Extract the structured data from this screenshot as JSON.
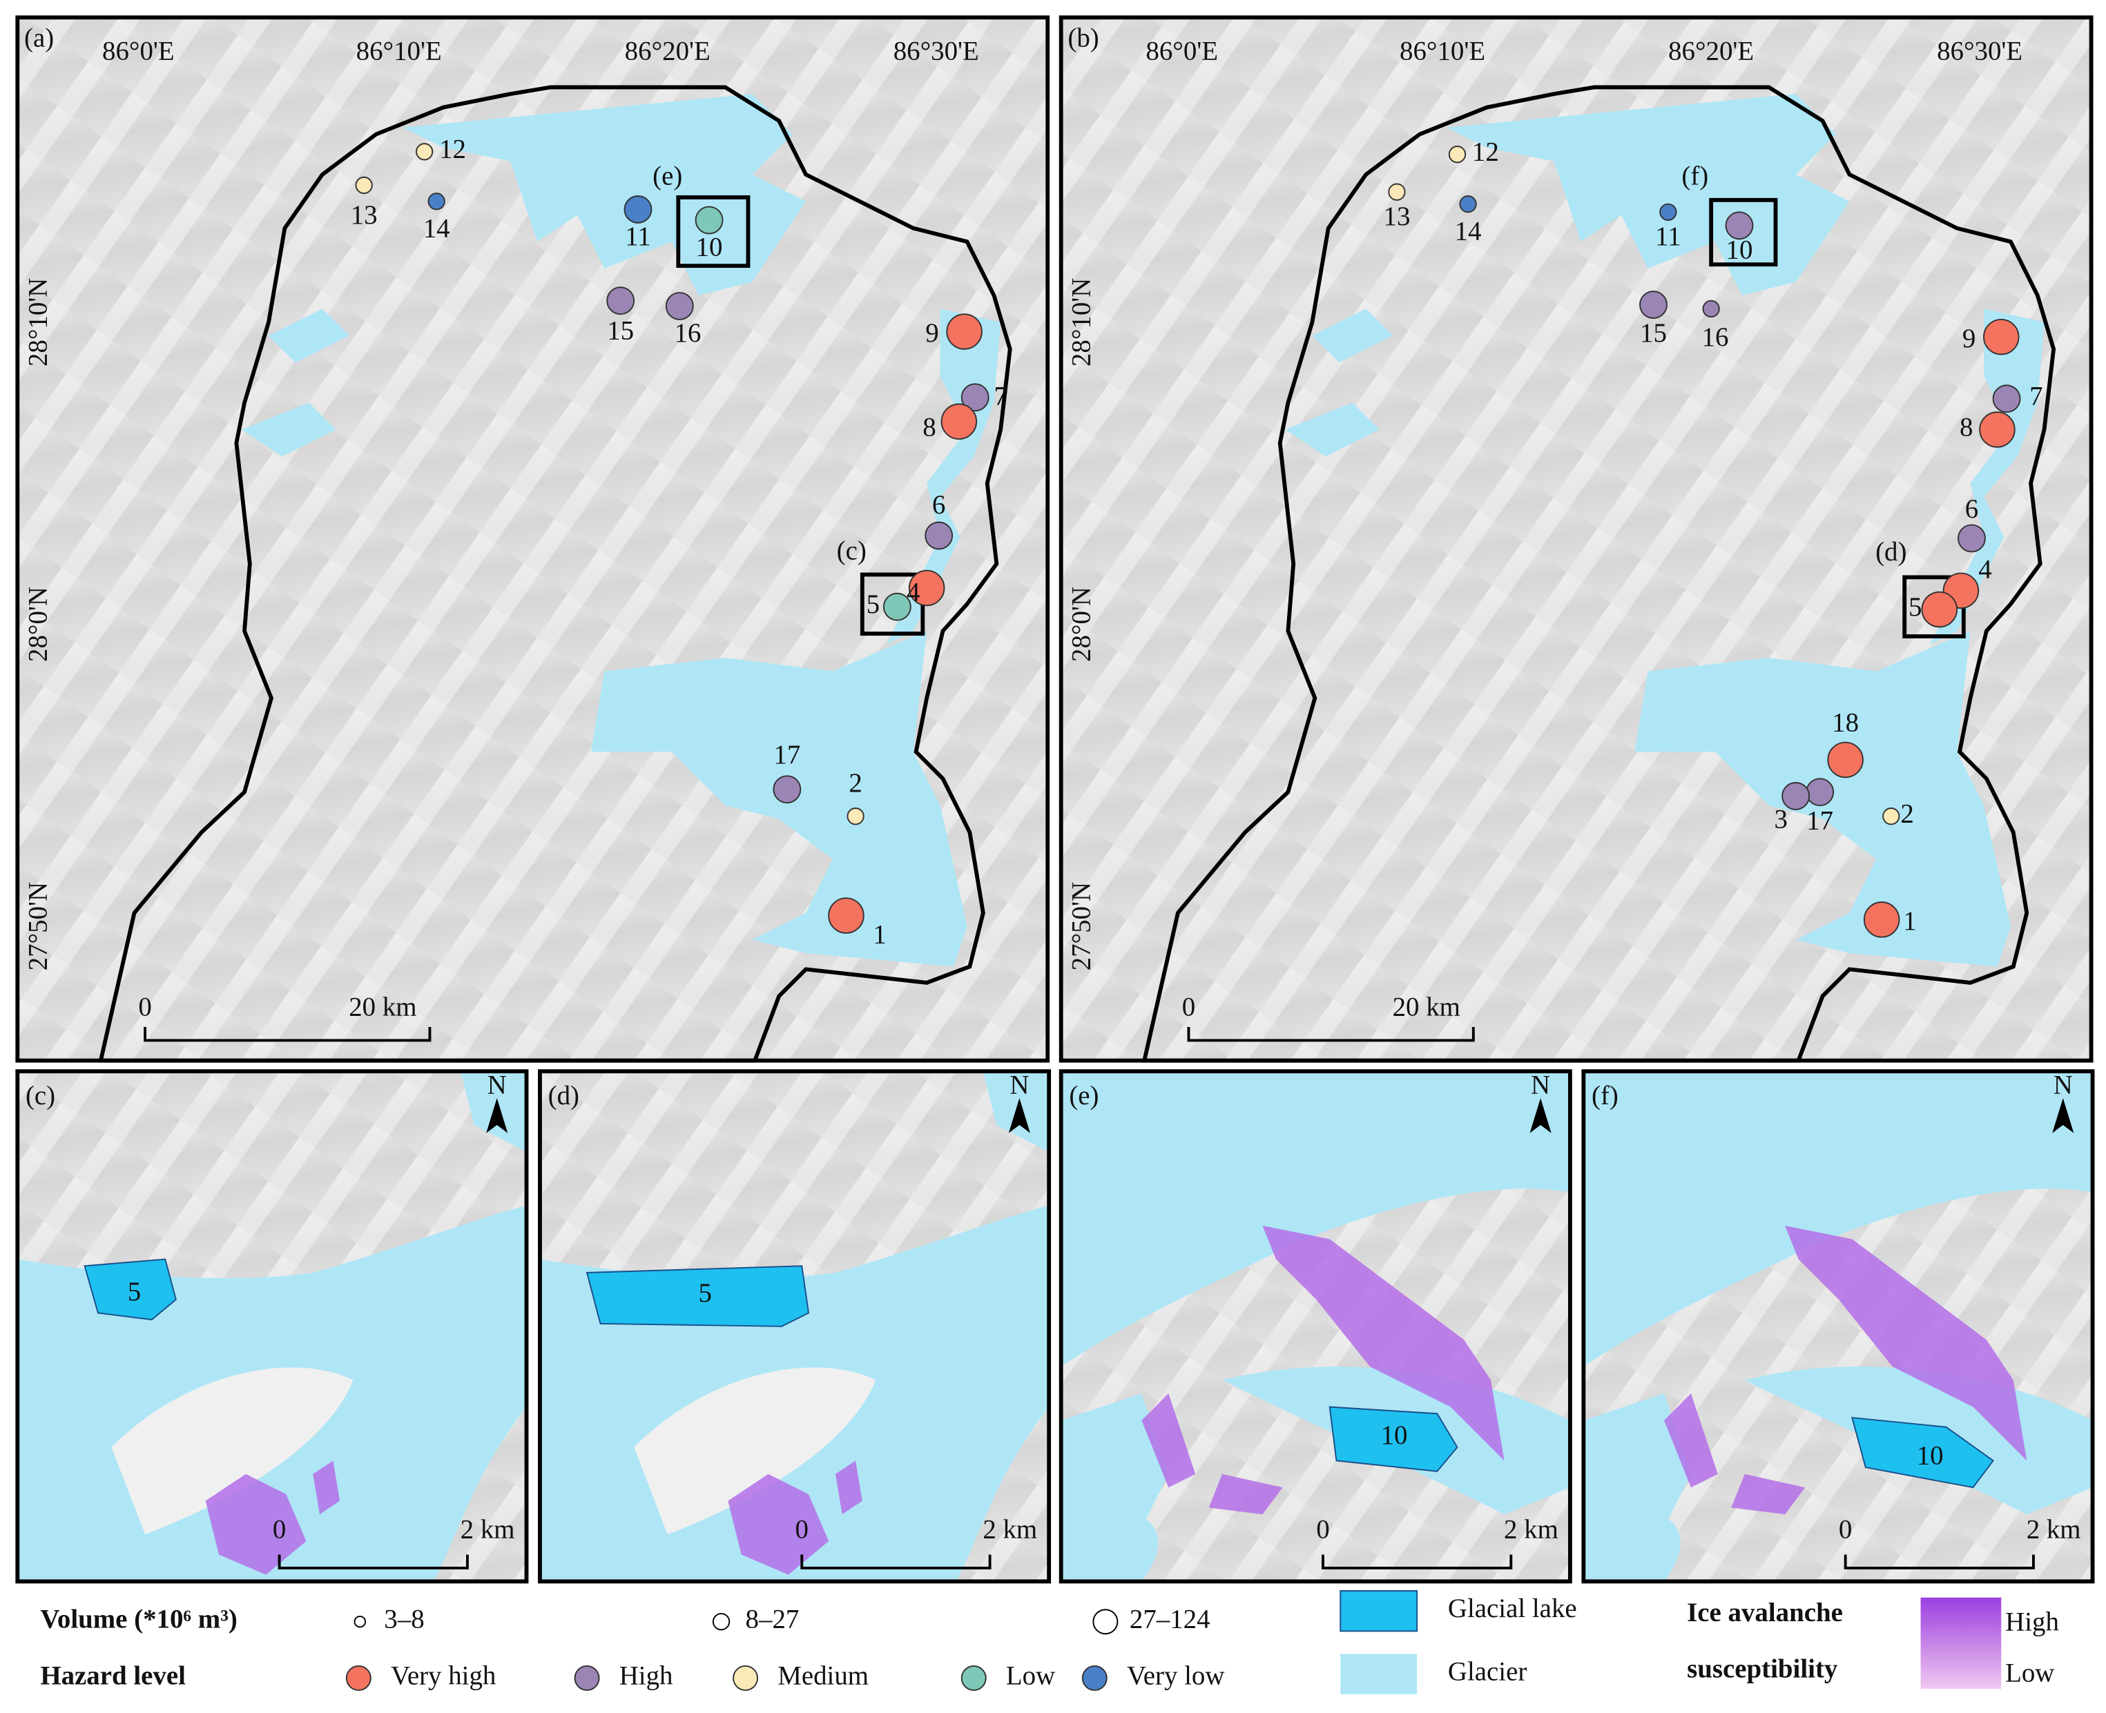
{
  "panels": [
    {
      "label": "(a)",
      "lon_labels": [
        "86°0'E",
        "86°10'E",
        "86°20'E",
        "86°30'E"
      ],
      "lat_labels": [
        "28°10'N",
        "28°0'N",
        "27°50'N"
      ],
      "scale": [
        "0",
        "20 km"
      ],
      "inset_labels": [
        "(e)",
        "(c)"
      ],
      "lakes": [
        {
          "label": "12",
          "hazard": "Medium",
          "volume": "3–8"
        },
        {
          "label": "13",
          "hazard": "Medium",
          "volume": "3–8"
        },
        {
          "label": "14",
          "hazard": "Very low",
          "volume": "3–8"
        },
        {
          "label": "11",
          "hazard": "Very low",
          "volume": "8–27"
        },
        {
          "label": "10",
          "hazard": "Low",
          "volume": "8–27"
        },
        {
          "label": "15",
          "hazard": "High",
          "volume": "8–27"
        },
        {
          "label": "16",
          "hazard": "High",
          "volume": "8–27"
        },
        {
          "label": "9",
          "hazard": "Very high",
          "volume": "27–124"
        },
        {
          "label": "7",
          "hazard": "High",
          "volume": "8–27"
        },
        {
          "label": "8",
          "hazard": "Very high",
          "volume": "27–124"
        },
        {
          "label": "6",
          "hazard": "High",
          "volume": "8–27"
        },
        {
          "label": "4",
          "hazard": "Very high",
          "volume": "27–124"
        },
        {
          "label": "5",
          "hazard": "Low",
          "volume": "8–27"
        },
        {
          "label": "17",
          "hazard": "High",
          "volume": "8–27"
        },
        {
          "label": "2",
          "hazard": "Medium",
          "volume": "3–8"
        },
        {
          "label": "1",
          "hazard": "Very high",
          "volume": "27–124"
        }
      ]
    },
    {
      "label": "(b)",
      "lon_labels": [
        "86°0'E",
        "86°10'E",
        "86°20'E",
        "86°30'E"
      ],
      "lat_labels": [
        "28°10'N",
        "28°0'N",
        "27°50'N"
      ],
      "scale": [
        "0",
        "20 km"
      ],
      "inset_labels": [
        "(f)",
        "(d)"
      ],
      "lakes": [
        {
          "label": "12",
          "hazard": "Medium",
          "volume": "3–8"
        },
        {
          "label": "13",
          "hazard": "Medium",
          "volume": "3–8"
        },
        {
          "label": "14",
          "hazard": "Very low",
          "volume": "3–8"
        },
        {
          "label": "11",
          "hazard": "Very low",
          "volume": "3–8"
        },
        {
          "label": "10",
          "hazard": "High",
          "volume": "8–27"
        },
        {
          "label": "15",
          "hazard": "High",
          "volume": "8–27"
        },
        {
          "label": "16",
          "hazard": "High",
          "volume": "3–8"
        },
        {
          "label": "9",
          "hazard": "Very high",
          "volume": "27–124"
        },
        {
          "label": "7",
          "hazard": "High",
          "volume": "8–27"
        },
        {
          "label": "8",
          "hazard": "Very high",
          "volume": "27–124"
        },
        {
          "label": "6",
          "hazard": "High",
          "volume": "8–27"
        },
        {
          "label": "4",
          "hazard": "Very high",
          "volume": "27–124"
        },
        {
          "label": "5",
          "hazard": "Very high",
          "volume": "27–124"
        },
        {
          "label": "18",
          "hazard": "Very high",
          "volume": "27–124"
        },
        {
          "label": "17",
          "hazard": "High",
          "volume": "8–27"
        },
        {
          "label": "3",
          "hazard": "High",
          "volume": "8–27"
        },
        {
          "label": "2",
          "hazard": "Medium",
          "volume": "3–8"
        },
        {
          "label": "1",
          "hazard": "Very high",
          "volume": "27–124"
        }
      ]
    }
  ],
  "insets": [
    {
      "label": "(c)",
      "north": "N",
      "lake_label": "5",
      "scale": [
        "0",
        "2 km"
      ]
    },
    {
      "label": "(d)",
      "north": "N",
      "lake_label": "5",
      "scale": [
        "0",
        "2 km"
      ]
    },
    {
      "label": "(e)",
      "north": "N",
      "lake_label": "10",
      "scale": [
        "0",
        "2 km"
      ]
    },
    {
      "label": "(f)",
      "north": "N",
      "lake_label": "10",
      "scale": [
        "0",
        "2 km"
      ]
    }
  ],
  "legend": {
    "volume": {
      "title": "Volume (*10⁶ m³)",
      "classes": [
        "3–8",
        "8–27",
        "27–124"
      ]
    },
    "hazard": {
      "title": "Hazard level",
      "levels": [
        {
          "name": "Very high",
          "color": "#f4735f"
        },
        {
          "name": "High",
          "color": "#9b85b5"
        },
        {
          "name": "Medium",
          "color": "#fbe9b7"
        },
        {
          "name": "Low",
          "color": "#7fc8b8"
        },
        {
          "name": "Very low",
          "color": "#4a80c8"
        }
      ]
    },
    "glacial_lake": "Glacial lake",
    "glacier": "Glacier",
    "susceptibility": {
      "title_line1": "Ice avalanche",
      "title_line2": "susceptibility",
      "high": "High",
      "low": "Low"
    }
  }
}
